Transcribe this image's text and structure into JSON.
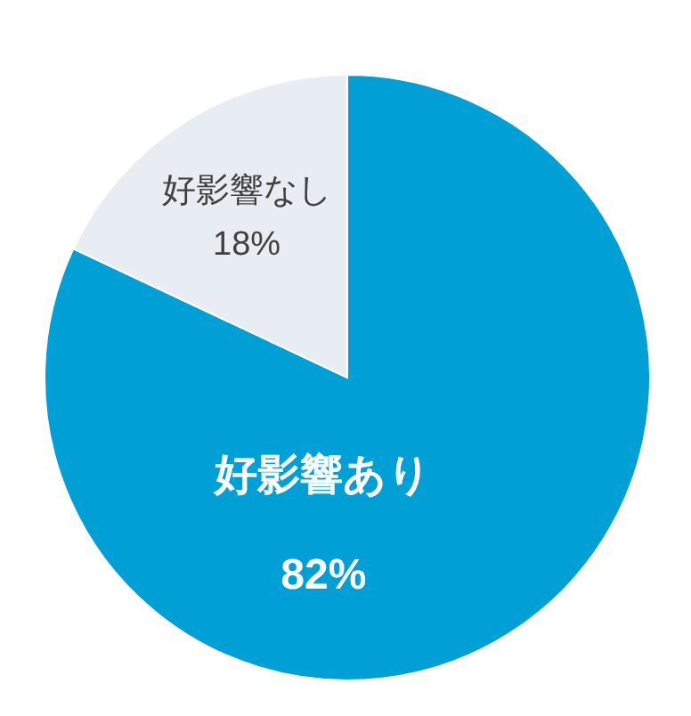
{
  "chart_data": {
    "type": "pie",
    "categories": [
      "好影響あり",
      "好影響なし"
    ],
    "values": [
      82,
      18
    ],
    "colors": [
      "#00a0d6",
      "#e8ecf3"
    ],
    "value_labels": [
      "82%",
      "18%"
    ]
  }
}
